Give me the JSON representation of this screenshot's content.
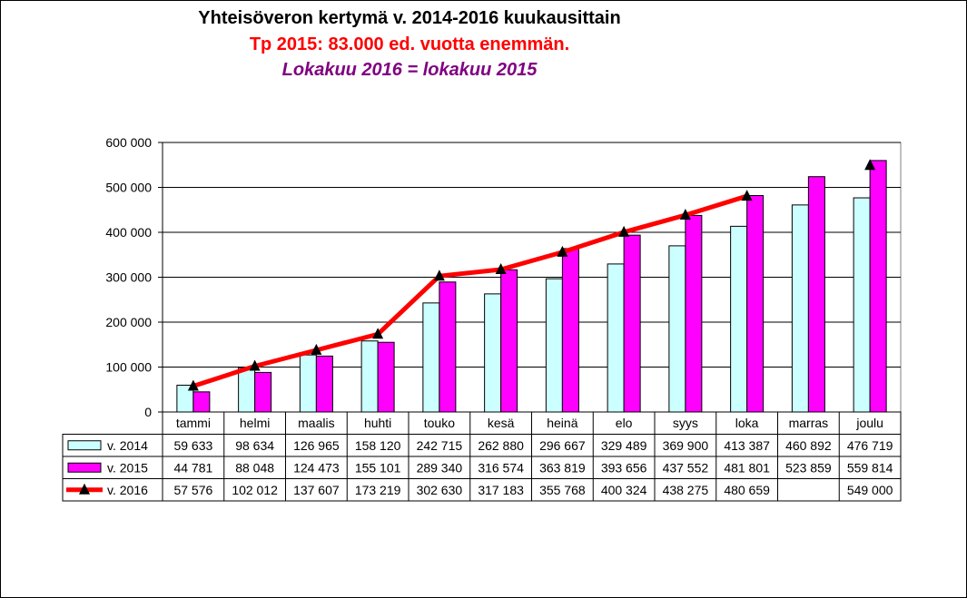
{
  "chart_data": {
    "type": "bar",
    "title": "Yhteisöveron kertymä  v. 2014-2016 kuukausittain",
    "subtitle": "Tp 2015: 83.000 ed. vuotta enemmän.",
    "note": "Lokakuu 2016 = lokakuu 2015",
    "categories": [
      "tammi",
      "helmi",
      "maalis",
      "huhti",
      "touko",
      "kesä",
      "heinä",
      "elo",
      "syys",
      "loka",
      "marras",
      "joulu"
    ],
    "ylim": [
      0,
      600000
    ],
    "yticks": [
      0,
      100000,
      200000,
      300000,
      400000,
      500000,
      600000
    ],
    "ytick_labels": [
      "0",
      "100 000",
      "200 000",
      "300 000",
      "400 000",
      "500 000",
      "600 000"
    ],
    "grid": true,
    "legend": "in data table",
    "series": [
      {
        "name": "v. 2014",
        "kind": "bar",
        "color": "#ccffff",
        "values": [
          59633,
          98634,
          126965,
          158120,
          242715,
          262880,
          296667,
          329489,
          369900,
          413387,
          460892,
          476719
        ],
        "labels": [
          "59 633",
          "98 634",
          "126 965",
          "158 120",
          "242 715",
          "262 880",
          "296 667",
          "329 489",
          "369 900",
          "413 387",
          "460 892",
          "476 719"
        ]
      },
      {
        "name": "v. 2015",
        "kind": "bar",
        "color": "#ff00ff",
        "values": [
          44781,
          88048,
          124473,
          155101,
          289340,
          316574,
          363819,
          393656,
          437552,
          481801,
          523859,
          559814
        ],
        "labels": [
          "44 781",
          "88 048",
          "124 473",
          "155 101",
          "289 340",
          "316 574",
          "363 819",
          "393 656",
          "437 552",
          "481 801",
          "523 859",
          "559 814"
        ]
      },
      {
        "name": "v. 2016",
        "kind": "line",
        "color": "#ff0000",
        "marker_color": "#000000",
        "values": [
          57576,
          102012,
          137607,
          173219,
          302630,
          317183,
          355768,
          400324,
          438275,
          480659,
          null,
          549000
        ],
        "labels": [
          "57 576",
          "102 012",
          "137 607",
          "173 219",
          "302 630",
          "317 183",
          "355 768",
          "400 324",
          "438 275",
          "480 659",
          "",
          "549 000"
        ]
      }
    ]
  }
}
